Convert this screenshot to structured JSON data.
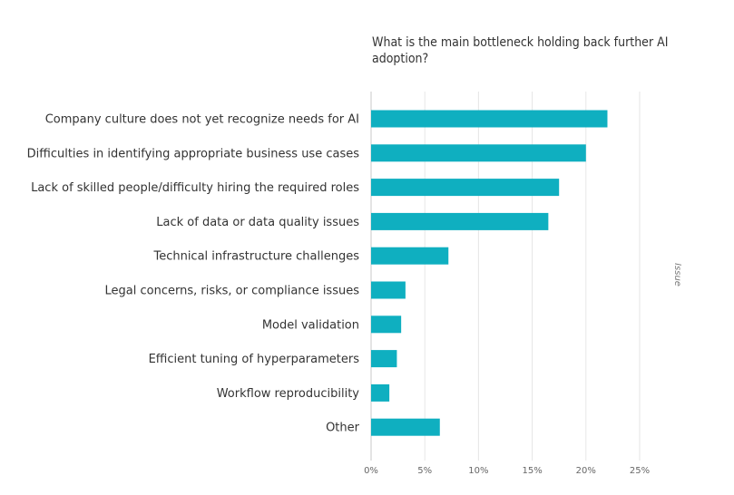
{
  "chart_data": {
    "type": "bar",
    "orientation": "horizontal",
    "title": "What is the main bottleneck holding back further AI adoption?",
    "xlabel": "",
    "ylabel": "",
    "side_label": "Issue",
    "categories": [
      "Company culture does not yet recognize needs for AI",
      "Difficulties in identifying appropriate business use cases",
      "Lack of skilled people/difficulty hiring the required roles",
      "Lack of data or data quality issues",
      "Technical infrastructure challenges",
      "Legal concerns, risks, or compliance issues",
      "Model validation",
      "Efficient tuning of hyperparameters",
      "Workflow reproducibility",
      "Other"
    ],
    "values": [
      22,
      20,
      17.5,
      16.5,
      7.2,
      3.2,
      2.8,
      2.4,
      1.7,
      6.4
    ],
    "xlim": [
      0,
      25
    ],
    "xticks": [
      "0%",
      "5%",
      "10%",
      "15%",
      "20%",
      "25%"
    ],
    "grid": true,
    "bar_color": "#0fafc0"
  }
}
